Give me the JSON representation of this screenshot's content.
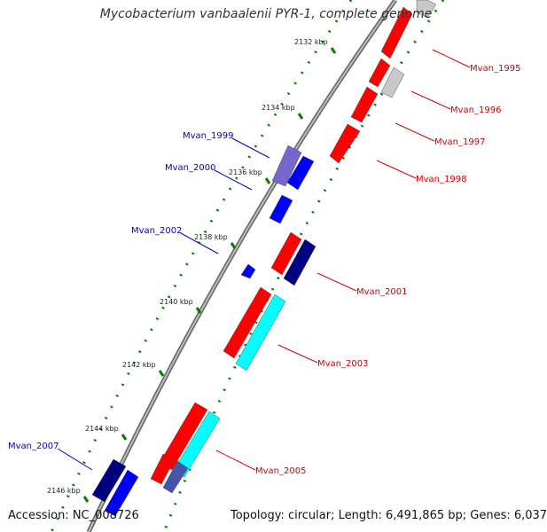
{
  "title": "Mycobacterium vanbaalenii PYR-1, complete genome",
  "footer": {
    "accession": "Accession: NC_008726",
    "summary": "Topology: circular; Length: 6,491,865 bp; Genes: 6,037"
  },
  "colors": {
    "forward_gene": "#ff0000",
    "reverse_gene_dark": "#000080",
    "reverse_gene": "#0000ff",
    "rna_gene": "#00ffff",
    "pseudo_gene": "#c8c8c8",
    "backbone": "#808080",
    "ticks": "#007f00",
    "label_red": "#d40000",
    "label_blue": "#0000cc"
  },
  "kbp_labels": [
    "2132 kbp",
    "2134 kbp",
    "2136 kbp",
    "2138 kbp",
    "2140 kbp",
    "2142 kbp",
    "2144 kbp",
    "2146 kbp"
  ],
  "genes_right": [
    {
      "name": "Mvan_1995"
    },
    {
      "name": "Mvan_1996"
    },
    {
      "name": "Mvan_1997"
    },
    {
      "name": "Mvan_1998"
    },
    {
      "name": "Mvan_2001"
    },
    {
      "name": "Mvan_2003"
    },
    {
      "name": "Mvan_2005"
    }
  ],
  "genes_left": [
    {
      "name": "Mvan_1999"
    },
    {
      "name": "Mvan_2000"
    },
    {
      "name": "Mvan_2002"
    },
    {
      "name": "Mvan_2007"
    }
  ]
}
